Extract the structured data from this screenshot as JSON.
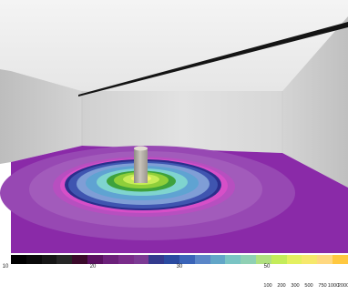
{
  "legend": {
    "colors": [
      "#000000",
      "#0a0a0a",
      "#161616",
      "#262626",
      "#3a0a2a",
      "#5a1060",
      "#6c207a",
      "#7a2c8a",
      "#7c3a94",
      "#333a8e",
      "#2a4aa0",
      "#3a64b8",
      "#5a86c8",
      "#62a6c8",
      "#7ac4c4",
      "#8fd0b4",
      "#b0e080",
      "#c4ec5a",
      "#e4f060",
      "#f6e86c",
      "#ffd880",
      "#ffc840"
    ],
    "upper_labels": [
      "10",
      "20",
      "30",
      "50"
    ],
    "lower_labels": [
      "100",
      "200",
      "300",
      "500",
      "750",
      "1000",
      "2000"
    ]
  },
  "colors": {
    "wall": "#d8d8d8",
    "ceiling": "#f0f0f0",
    "floor": "#8a2aa8",
    "pillar": "#b8b2a8",
    "rod": "#1a1a1a"
  }
}
